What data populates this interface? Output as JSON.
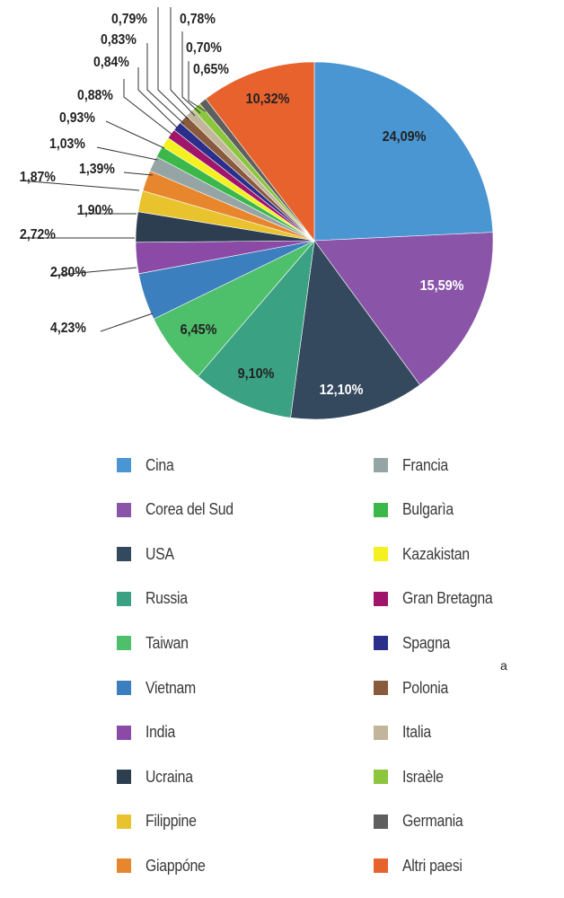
{
  "chart_data": {
    "type": "pie",
    "start": "12 o'clock, clockwise",
    "slices": [
      {
        "label": "Cina",
        "value": 24.09,
        "display": "24,09%",
        "color": "#4a96d2"
      },
      {
        "label": "Corea del Sud",
        "value": 15.59,
        "display": "15,59%",
        "color": "#8a55a8"
      },
      {
        "label": "USA",
        "value": 12.1,
        "display": "12,10%",
        "color": "#34495e"
      },
      {
        "label": "Russia",
        "value": 9.1,
        "display": "9,10%",
        "color": "#3aa183"
      },
      {
        "label": "Taiwan",
        "value": 6.45,
        "display": "6,45%",
        "color": "#4ebf6b"
      },
      {
        "label": "Vietnam",
        "value": 4.23,
        "display": "4,23%",
        "color": "#3c7fbf"
      },
      {
        "label": "India",
        "value": 2.8,
        "display": "2,80%",
        "color": "#8a4aa5"
      },
      {
        "label": "Ucraina",
        "value": 2.72,
        "display": "2,72%",
        "color": "#2c3e50"
      },
      {
        "label": "Filippine",
        "value": 1.9,
        "display": "1,90%",
        "color": "#e8c32e"
      },
      {
        "label": "Giappóne",
        "value": 1.87,
        "display": "1,87%",
        "color": "#e8862e"
      },
      {
        "label": "Francia",
        "value": 1.39,
        "display": "1,39%",
        "color": "#95a5a6"
      },
      {
        "label": "Bulgarìa",
        "value": 1.03,
        "display": "1,03%",
        "color": "#3cb84a"
      },
      {
        "label": "Kazakistan",
        "value": 0.93,
        "display": "0,93%",
        "color": "#f5f020"
      },
      {
        "label": "Gran Bretagna",
        "value": 0.88,
        "display": "0,88%",
        "color": "#a0156a"
      },
      {
        "label": "Spagna",
        "value": 0.84,
        "display": "0,84%",
        "color": "#2b2f8c"
      },
      {
        "label": "Polonia",
        "value": 0.83,
        "display": "0,83%",
        "color": "#8a5a3c"
      },
      {
        "label": "Italia",
        "value": 0.79,
        "display": "0,79%",
        "color": "#c2b59b"
      },
      {
        "label": "Israèle",
        "value": 0.78,
        "display": "0,78%",
        "color": "#8cc63e"
      },
      {
        "label": "Germania",
        "value": 0.7,
        "display": "0,70%",
        "color": "#5f5f5f"
      },
      {
        "label": "Altri paesi",
        "value": 10.32,
        "display": "10,32%",
        "color": "#e8622e"
      }
    ],
    "extra_label": "0,65%",
    "legend_placement": "bottom, two columns"
  },
  "stray_text": "a"
}
